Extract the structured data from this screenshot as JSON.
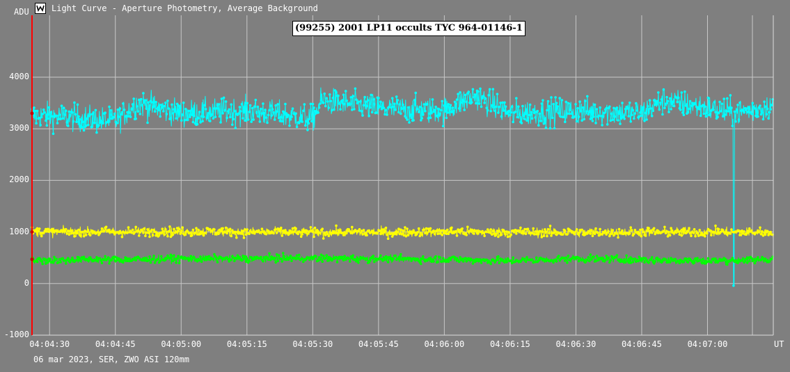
{
  "window": {
    "title": "Light Curve - Aperture Photometry, Average Background",
    "icon": "light-curve-app-icon"
  },
  "footer": "06 mar 2023, SER, ZWO ASI 120mm",
  "chart_data": {
    "type": "line",
    "title": "(99255) 2001 LP11 occults TYC 964-01146-1",
    "ylabel": "ADU",
    "xlabel": "UT",
    "ylim": [
      -1000,
      5200
    ],
    "yticks": [
      -1000,
      0,
      1000,
      2000,
      3000,
      4000
    ],
    "xticks": [
      "04:04:30",
      "04:04:45",
      "04:05:00",
      "04:05:15",
      "04:05:30",
      "04:05:45",
      "04:06:00",
      "04:06:15",
      "04:06:30",
      "04:06:45",
      "04:07:00"
    ],
    "xlim": [
      "04:04:26",
      "04:07:15"
    ],
    "grid": true,
    "marker": "04:04:26",
    "event": {
      "time": "04:07:06",
      "min_value": -40
    },
    "series": [
      {
        "color": "#00ffff",
        "mean": 3300,
        "scatter": 450,
        "points": [
          [
            "04:04:30",
            3250
          ],
          [
            "04:04:45",
            3150
          ],
          [
            "04:04:50",
            3500
          ],
          [
            "04:05:00",
            3300
          ],
          [
            "04:05:15",
            3350
          ],
          [
            "04:05:30",
            3200
          ],
          [
            "04:05:32",
            3550
          ],
          [
            "04:05:45",
            3400
          ],
          [
            "04:06:00",
            3350
          ],
          [
            "04:06:07",
            3650
          ],
          [
            "04:06:15",
            3300
          ],
          [
            "04:06:30",
            3350
          ],
          [
            "04:06:45",
            3300
          ],
          [
            "04:06:50",
            3550
          ],
          [
            "04:07:00",
            3400
          ],
          [
            "04:07:06",
            3300
          ],
          [
            "04:07:15",
            3450
          ]
        ]
      },
      {
        "color": "#ffff00",
        "mean": 1000,
        "scatter": 160,
        "points": [
          [
            "04:04:30",
            1000
          ],
          [
            "04:05:00",
            1010
          ],
          [
            "04:05:30",
            990
          ],
          [
            "04:06:00",
            1000
          ],
          [
            "04:06:30",
            990
          ],
          [
            "04:07:00",
            1000
          ],
          [
            "04:07:15",
            990
          ]
        ]
      },
      {
        "color": "#00ff00",
        "mean": 470,
        "scatter": 120,
        "points": [
          [
            "04:04:30",
            450
          ],
          [
            "04:05:00",
            480
          ],
          [
            "04:05:30",
            490
          ],
          [
            "04:06:00",
            470
          ],
          [
            "04:06:15",
            440
          ],
          [
            "04:06:30",
            480
          ],
          [
            "04:07:00",
            440
          ],
          [
            "04:07:15",
            470
          ]
        ]
      }
    ]
  }
}
